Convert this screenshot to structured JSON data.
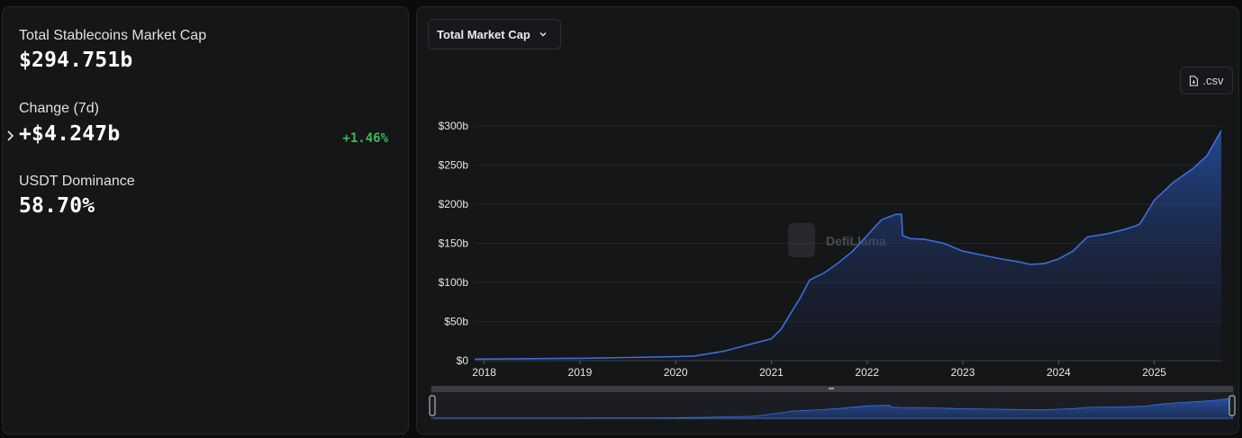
{
  "summary": {
    "market_cap_label": "Total Stablecoins Market Cap",
    "market_cap_value": "$294.751b",
    "change_label": "Change (7d)",
    "change_value": "+$4.247b",
    "change_percent": "+1.46%",
    "dominance_label": "USDT Dominance",
    "dominance_value": "58.70%"
  },
  "controls": {
    "metric_dropdown": "Total Market Cap",
    "csv_button": ".csv"
  },
  "watermark": "DefiLlama",
  "colors": {
    "line": "#3a6fdc",
    "positive": "#3fb950"
  },
  "chart_data": {
    "type": "area",
    "title": "",
    "xlabel": "",
    "ylabel": "",
    "y_tick_labels": [
      "$0",
      "$50b",
      "$100b",
      "$150b",
      "$200b",
      "$250b",
      "$300b"
    ],
    "y_ticks": [
      0,
      50,
      100,
      150,
      200,
      250,
      300
    ],
    "x_tick_labels": [
      "2018",
      "2019",
      "2020",
      "2021",
      "2022",
      "2023",
      "2024",
      "2025"
    ],
    "x_ticks": [
      2018,
      2019,
      2020,
      2021,
      2022,
      2023,
      2024,
      2025
    ],
    "xlim": [
      2017.9,
      2025.7
    ],
    "ylim": [
      0,
      300
    ],
    "grid": "horizontal",
    "series": [
      {
        "name": "",
        "x": [
          2017.9,
          2018.5,
          2019.0,
          2019.5,
          2020.0,
          2020.2,
          2020.5,
          2020.75,
          2021.0,
          2021.1,
          2021.2,
          2021.3,
          2021.4,
          2021.55,
          2021.7,
          2021.85,
          2022.0,
          2022.15,
          2022.3,
          2022.36,
          2022.37,
          2022.45,
          2022.6,
          2022.8,
          2023.0,
          2023.2,
          2023.4,
          2023.6,
          2023.7,
          2023.85,
          2024.0,
          2024.15,
          2024.3,
          2024.5,
          2024.7,
          2024.8,
          2024.85,
          2025.0,
          2025.2,
          2025.4,
          2025.55,
          2025.7
        ],
        "y": [
          2,
          2.5,
          3,
          4,
          5,
          6,
          12,
          20,
          28,
          40,
          60,
          80,
          103,
          112,
          125,
          140,
          160,
          180,
          187,
          187,
          160,
          156,
          155,
          150,
          140,
          135,
          130,
          126,
          123,
          124,
          130,
          140,
          158,
          162,
          168,
          172,
          175,
          205,
          228,
          245,
          262,
          294
        ]
      }
    ]
  }
}
